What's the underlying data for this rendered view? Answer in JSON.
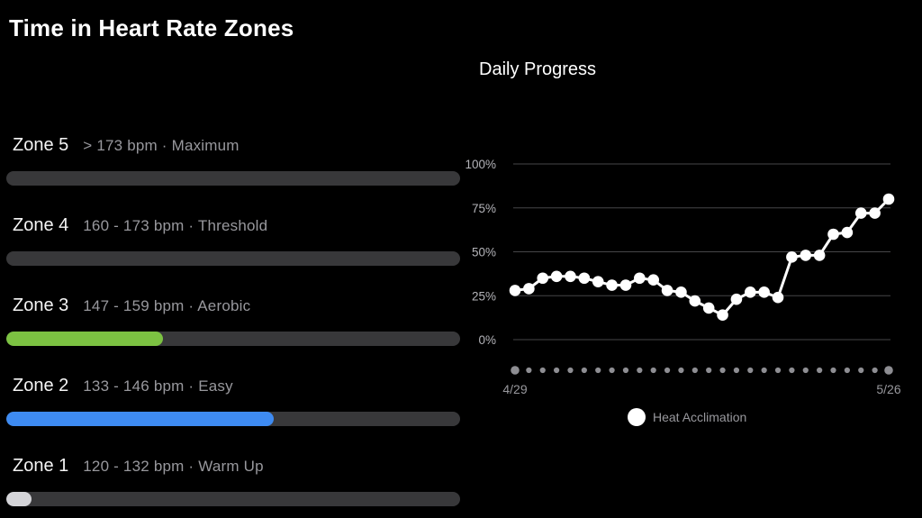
{
  "title": "Time in Heart Rate Zones",
  "zones": [
    {
      "name": "Zone 5",
      "range": "> 173 bpm · Maximum",
      "percent": 0,
      "fill_color": "#38383a"
    },
    {
      "name": "Zone 4",
      "range": "160 - 173 bpm · Threshold",
      "percent": 0,
      "fill_color": "#38383a"
    },
    {
      "name": "Zone 3",
      "range": "147 - 159 bpm · Aerobic",
      "percent": 34.5,
      "fill_color": "#7cc242"
    },
    {
      "name": "Zone 2",
      "range": "133 - 146 bpm · Easy",
      "percent": 59,
      "fill_color": "#3e8bf2"
    },
    {
      "name": "Zone 1",
      "range": "120 - 132 bpm · Warm Up",
      "percent": 5.5,
      "fill_color": "#d4d4d8"
    }
  ],
  "chart_data": {
    "type": "line",
    "title": "Daily Progress",
    "series": [
      {
        "name": "Heat Acclimation",
        "values": [
          28,
          29,
          35,
          36,
          36,
          35,
          33,
          31,
          31,
          35,
          34,
          28,
          27,
          22,
          18,
          14,
          23,
          27,
          27,
          24,
          47,
          48,
          48,
          60,
          61,
          72,
          72,
          80
        ]
      }
    ],
    "num_points": 28,
    "ylim": [
      0,
      100
    ],
    "ylabel": "",
    "xlabel": "",
    "y_tick_labels": [
      "100%",
      "75%",
      "50%",
      "25%",
      "0%"
    ],
    "x_start_label": "4/29",
    "x_end_label": "5/26",
    "grid": true,
    "legend_position": "bottom",
    "legend": {
      "label": "Heat Acclimation"
    }
  },
  "colors": {
    "background": "#000000",
    "line": "#ffffff",
    "marker": "#ffffff",
    "axis_dot": "#8e8e93",
    "gridline": "#464649",
    "track": "#38383a",
    "zone3_green": "#7cc242",
    "zone2_blue": "#3e8bf2",
    "zone1_gray": "#d4d4d8",
    "muted_text": "#98989d"
  }
}
